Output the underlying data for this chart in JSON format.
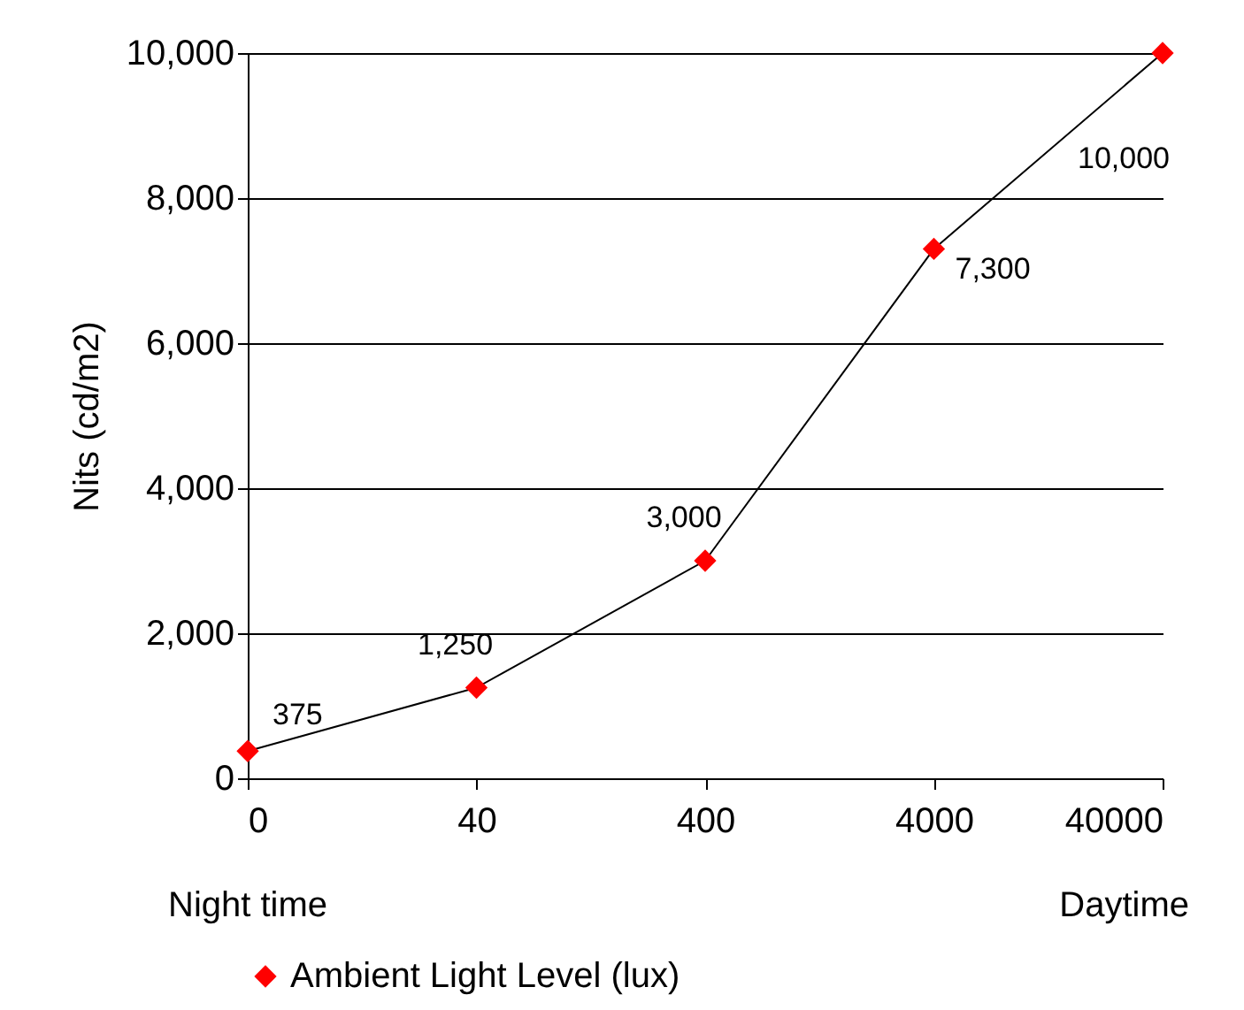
{
  "chart_data": {
    "type": "line",
    "categories": [
      "0",
      "40",
      "400",
      "4000",
      "40000"
    ],
    "series": [
      {
        "name": "Ambient Light Level (lux)",
        "color": "#ff0000",
        "values": [
          375,
          1250,
          3000,
          7300,
          10000
        ],
        "value_labels": [
          "375",
          "1,250",
          "3,000",
          "7,300",
          "10,000"
        ]
      }
    ],
    "ylabel": "Nits (cd/m2)",
    "ylim": [
      0,
      10000
    ],
    "yticks": [
      0,
      {
        "value": 2000,
        "label": "2,000"
      },
      {
        "value": 4000,
        "label": "4,000"
      },
      {
        "value": 6000,
        "label": "6,000"
      },
      {
        "value": 8000,
        "label": "8,000"
      },
      {
        "value": 10000,
        "label": "10,000"
      }
    ],
    "grid": "y",
    "legend": "bottom",
    "marker": "diamond",
    "line_style": "solid",
    "annotations": [
      "Night time",
      "Daytime"
    ]
  }
}
